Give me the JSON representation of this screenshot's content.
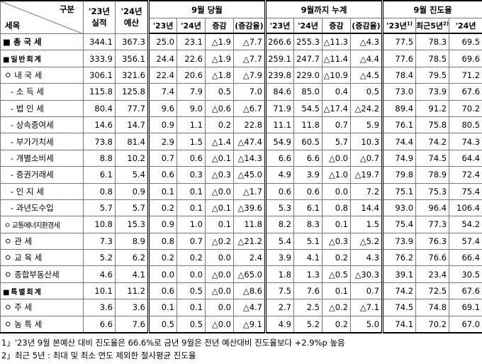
{
  "header": {
    "corner_top": "구분",
    "corner_bottom": "세목",
    "col_actual": [
      "'23년",
      "실적"
    ],
    "col_budget": [
      "'24년",
      "예산"
    ],
    "groups": [
      "9월 당월",
      "9월까지 누계",
      "9월 진도율"
    ],
    "sub": [
      "'23년",
      "'24년",
      "증감",
      "(증감율)",
      "'23년",
      "'24년",
      "증감",
      "(증감율)",
      "'23년",
      "최근5년",
      "'24년"
    ],
    "sub_marks": [
      "1)",
      "2)"
    ]
  },
  "table": {
    "rows": [
      [
        "■ 총 국 세",
        "344.1",
        "367.3",
        "25.0",
        "23.1",
        "△1.9",
        "△7.7",
        "266.6",
        "255.3",
        "△11.3",
        "△4.3",
        "77.5",
        "78.3",
        "69.5"
      ],
      [
        "■ 일 반 회 계",
        "333.9",
        "356.1",
        "24.4",
        "22.6",
        "△1.9",
        "△7.7",
        "259.1",
        "247.7",
        "△11.4",
        "△4.4",
        "77.6",
        "78.5",
        "69.6"
      ],
      [
        "ㅇ 내 국 세",
        "306.1",
        "321.6",
        "22.4",
        "20.6",
        "△1.8",
        "△7.9",
        "239.8",
        "229.0",
        "△10.9",
        "△4.5",
        "78.4",
        "79.5",
        "71.2"
      ],
      [
        "- 소 득 세",
        "115.8",
        "125.8",
        "7.4",
        "7.9",
        "0.5",
        "7.0",
        "84.6",
        "85.0",
        "0.4",
        "0.5",
        "73.0",
        "73.9",
        "67.6"
      ],
      [
        "- 법 인 세",
        "80.4",
        "77.7",
        "9.6",
        "9.0",
        "△0.6",
        "△6.7",
        "71.9",
        "54.5",
        "△17.4",
        "△24.2",
        "89.4",
        "91.2",
        "70.2"
      ],
      [
        "- 상속증여세",
        "14.6",
        "14.7",
        "0.9",
        "1.1",
        "0.2",
        "22.8",
        "11.1",
        "11.8",
        "0.7",
        "5.9",
        "76.1",
        "75.8",
        "80.5"
      ],
      [
        "- 부가가치세",
        "73.8",
        "81.4",
        "2.9",
        "1.5",
        "△1.4",
        "△47.4",
        "54.9",
        "60.5",
        "5.7",
        "10.3",
        "74.4",
        "74.2",
        "74.3"
      ],
      [
        "- 개별소비세",
        "8.8",
        "10.2",
        "0.7",
        "0.6",
        "△0.1",
        "△14.3",
        "6.6",
        "6.6",
        "△0.0",
        "△0.7",
        "74.9",
        "74.5",
        "64.4"
      ],
      [
        "- 증권거래세",
        "6.1",
        "5.4",
        "0.6",
        "0.3",
        "△0.3",
        "△45.0",
        "4.9",
        "3.9",
        "△1.0",
        "△19.7",
        "79.8",
        "78.9",
        "72.4"
      ],
      [
        "- 인 지 세",
        "0.8",
        "0.9",
        "0.1",
        "0.1",
        "△0.0",
        "△1.7",
        "0.6",
        "0.6",
        "0.0",
        "7.2",
        "75.1",
        "75.3",
        "75.4"
      ],
      [
        "- 과년도수입",
        "5.7",
        "5.7",
        "0.2",
        "0.1",
        "△0.1",
        "△39.6",
        "5.3",
        "6.1",
        "0.8",
        "14.4",
        "93.0",
        "96.4",
        "106.4"
      ],
      [
        "ㅇ 교통에너지환경세",
        "10.8",
        "15.3",
        "0.9",
        "1.0",
        "0.1",
        "11.8",
        "8.2",
        "8.3",
        "0.1",
        "1.5",
        "75.4",
        "77.3",
        "54.2"
      ],
      [
        "ㅇ 관 세",
        "7.3",
        "8.9",
        "0.8",
        "0.7",
        "△0.2",
        "△21.2",
        "5.4",
        "5.1",
        "△0.3",
        "△5.2",
        "73.9",
        "76.3",
        "57.4"
      ],
      [
        "ㅇ 교 육 세",
        "5.2",
        "6.2",
        "0.2",
        "0.2",
        "0.0",
        "2.4",
        "3.9",
        "4.1",
        "0.2",
        "4.3",
        "76.2",
        "76.6",
        "66.4"
      ],
      [
        "ㅇ 종합부동산세",
        "4.6",
        "4.1",
        "0.0",
        "0.0",
        "△0.0",
        "△65.0",
        "1.8",
        "1.3",
        "△0.5",
        "△30.3",
        "39.1",
        "23.4",
        "30.5"
      ],
      [
        "■ 특 별 회 계",
        "10.1",
        "11.2",
        "0.6",
        "0.5",
        "△0.0",
        "△8.6",
        "7.5",
        "7.6",
        "0.1",
        "0.7",
        "74.2",
        "72.5",
        "67.6"
      ],
      [
        "ㅇ 주 세",
        "3.6",
        "3.6",
        "0.1",
        "0.1",
        "0.0",
        "△4.7",
        "2.7",
        "2.5",
        "△0.2",
        "△7.1",
        "74.5",
        "74.8",
        "69.1"
      ],
      [
        "ㅇ 농 특 세",
        "6.6",
        "7.6",
        "0.5",
        "0.5",
        "△0.0",
        "△9.1",
        "4.9",
        "5.2",
        "0.2",
        "5.0",
        "74.1",
        "70.2",
        "67.0"
      ]
    ]
  },
  "footnotes": [
    "1」'23년 9월 본예산 대비 진도율은 66.6%로 금년 9월은 전년 예산대비 진도율보다 +2.9%p 높음",
    "2」최근 5년 : 최대 및 최소 연도 제외한 절사평균 진도율"
  ]
}
